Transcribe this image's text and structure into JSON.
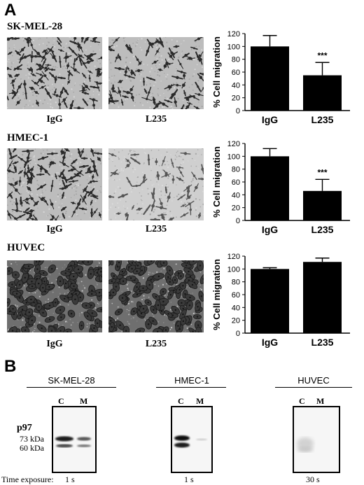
{
  "panel_a": {
    "letter": "A",
    "rows": [
      {
        "cell_line": "SK-MEL-28",
        "left_label": "IgG",
        "right_label": "L235"
      },
      {
        "cell_line": "HMEC-1",
        "left_label": "IgG",
        "right_label": "L235"
      },
      {
        "cell_line": "HUVEC",
        "left_label": "IgG",
        "right_label": "L235"
      }
    ]
  },
  "chart_data": [
    {
      "type": "bar",
      "categories": [
        "IgG",
        "L235"
      ],
      "values": [
        100,
        55
      ],
      "errors": [
        17,
        20
      ],
      "annotations": [
        "",
        "***"
      ],
      "ylabel": "% Cell migration",
      "ylim": [
        0,
        120
      ],
      "yticks": [
        "0",
        "20",
        "40",
        "60",
        "80",
        "100",
        "120"
      ]
    },
    {
      "type": "bar",
      "categories": [
        "IgG",
        "L235"
      ],
      "values": [
        100,
        46
      ],
      "errors": [
        12,
        18
      ],
      "annotations": [
        "",
        "***"
      ],
      "ylabel": "% Cell migration",
      "ylim": [
        0,
        120
      ],
      "yticks": [
        "0",
        "20",
        "40",
        "60",
        "80",
        "100",
        "120"
      ]
    },
    {
      "type": "bar",
      "categories": [
        "IgG",
        "L235"
      ],
      "values": [
        100,
        111
      ],
      "errors": [
        2,
        6
      ],
      "annotations": [
        "",
        ""
      ],
      "ylabel": "% Cell migration",
      "ylim": [
        0,
        120
      ],
      "yticks": [
        "0",
        "20",
        "40",
        "60",
        "80",
        "100",
        "120"
      ]
    }
  ],
  "panel_b": {
    "letter": "B",
    "protein": "p97",
    "markers": [
      "73 kDa",
      "60 kDa"
    ],
    "exposure_label": "Time exposure:",
    "blots": [
      {
        "title": "SK-MEL-28",
        "lanes": [
          "C",
          "M"
        ],
        "exposure": "1 s"
      },
      {
        "title": "HMEC-1",
        "lanes": [
          "C",
          "M"
        ],
        "exposure": "1 s"
      },
      {
        "title": "HUVEC",
        "lanes": [
          "C",
          "M"
        ],
        "exposure": "30 s"
      }
    ]
  }
}
